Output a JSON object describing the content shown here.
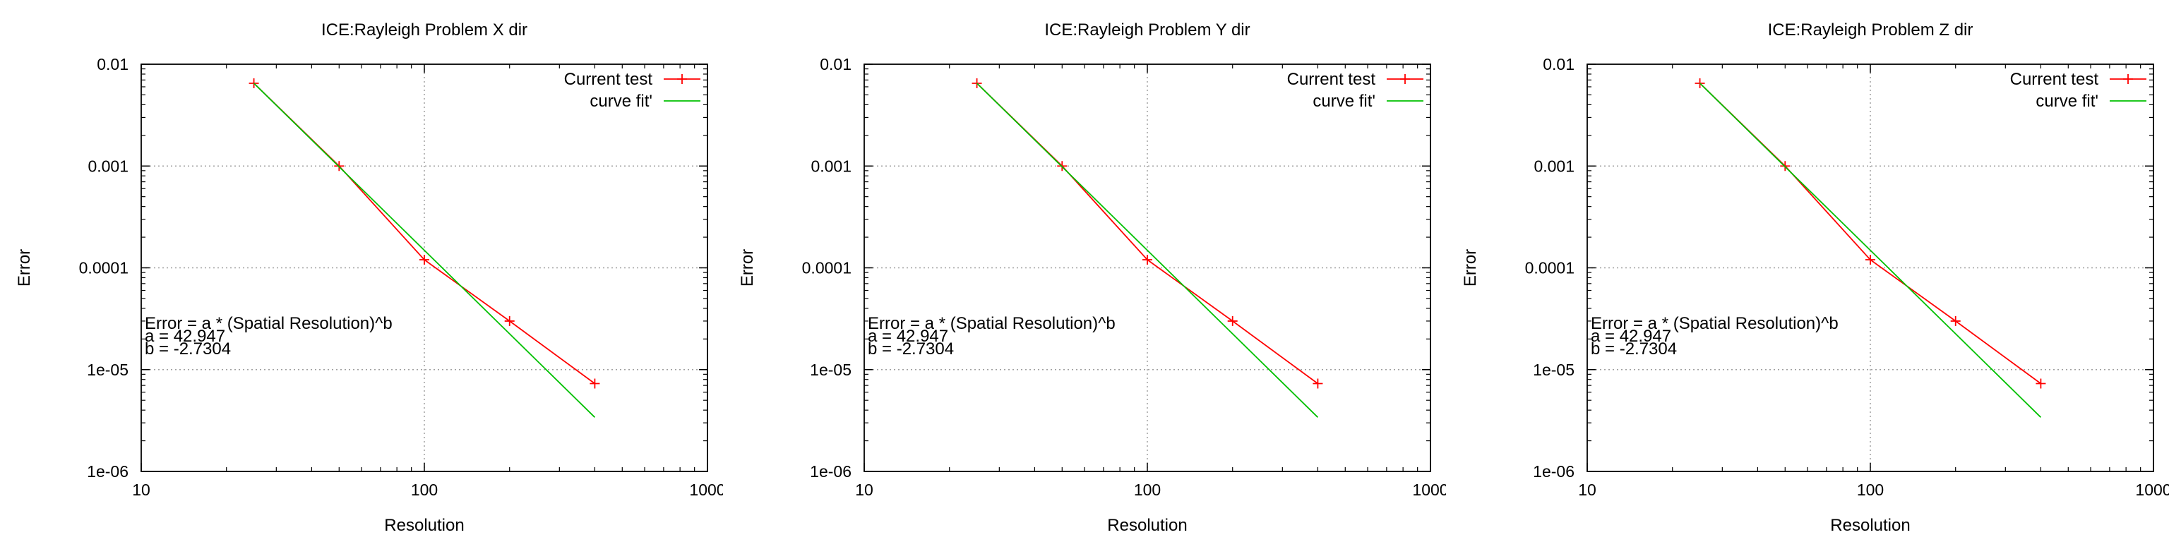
{
  "chart_data": [
    {
      "type": "line",
      "title": "ICE:Rayleigh Problem X dir",
      "xlabel": "Resolution",
      "ylabel": "Error",
      "x_scale": "log",
      "y_scale": "log",
      "xlim": [
        10,
        1000
      ],
      "ylim": [
        1e-06,
        0.01
      ],
      "x_ticks": [
        "10",
        "100",
        "1000"
      ],
      "y_ticks": [
        "1e-06",
        "1e-05",
        "0.0001",
        "0.001",
        "0.01"
      ],
      "grid": true,
      "legend_position": "top-right",
      "series": [
        {
          "name": "Current test",
          "color": "#ff0000",
          "marker": "+",
          "x": [
            25,
            50,
            100,
            200,
            400
          ],
          "y": [
            0.0065,
            0.001,
            0.00012,
            3e-05,
            7.3e-06
          ]
        },
        {
          "name": "curve fit'",
          "color": "#00c000",
          "marker": "none",
          "x": [
            25,
            400
          ],
          "y": [
            0.0065,
            3.4e-06
          ]
        }
      ],
      "annotation": [
        "Error = a * (Spatial Resolution)^b",
        "a = 42.947",
        "b = -2.7304"
      ]
    },
    {
      "type": "line",
      "title": "ICE:Rayleigh Problem Y dir",
      "xlabel": "Resolution",
      "ylabel": "Error",
      "x_scale": "log",
      "y_scale": "log",
      "xlim": [
        10,
        1000
      ],
      "ylim": [
        1e-06,
        0.01
      ],
      "x_ticks": [
        "10",
        "100",
        "1000"
      ],
      "y_ticks": [
        "1e-06",
        "1e-05",
        "0.0001",
        "0.001",
        "0.01"
      ],
      "grid": true,
      "legend_position": "top-right",
      "series": [
        {
          "name": "Current test",
          "color": "#ff0000",
          "marker": "+",
          "x": [
            25,
            50,
            100,
            200,
            400
          ],
          "y": [
            0.0065,
            0.001,
            0.00012,
            3e-05,
            7.3e-06
          ]
        },
        {
          "name": "curve fit'",
          "color": "#00c000",
          "marker": "none",
          "x": [
            25,
            400
          ],
          "y": [
            0.0065,
            3.4e-06
          ]
        }
      ],
      "annotation": [
        "Error = a * (Spatial Resolution)^b",
        "a = 42.947",
        "b = -2.7304"
      ]
    },
    {
      "type": "line",
      "title": "ICE:Rayleigh Problem Z dir",
      "xlabel": "Resolution",
      "ylabel": "Error",
      "x_scale": "log",
      "y_scale": "log",
      "xlim": [
        10,
        1000
      ],
      "ylim": [
        1e-06,
        0.01
      ],
      "x_ticks": [
        "10",
        "100",
        "1000"
      ],
      "y_ticks": [
        "1e-06",
        "1e-05",
        "0.0001",
        "0.001",
        "0.01"
      ],
      "grid": true,
      "legend_position": "top-right",
      "series": [
        {
          "name": "Current test",
          "color": "#ff0000",
          "marker": "+",
          "x": [
            25,
            50,
            100,
            200,
            400
          ],
          "y": [
            0.0065,
            0.001,
            0.00012,
            3e-05,
            7.3e-06
          ]
        },
        {
          "name": "curve fit'",
          "color": "#00c000",
          "marker": "none",
          "x": [
            25,
            400
          ],
          "y": [
            0.0065,
            3.4e-06
          ]
        }
      ],
      "annotation": [
        "Error = a * (Spatial Resolution)^b",
        "a = 42.947",
        "b = -2.7304"
      ]
    }
  ]
}
